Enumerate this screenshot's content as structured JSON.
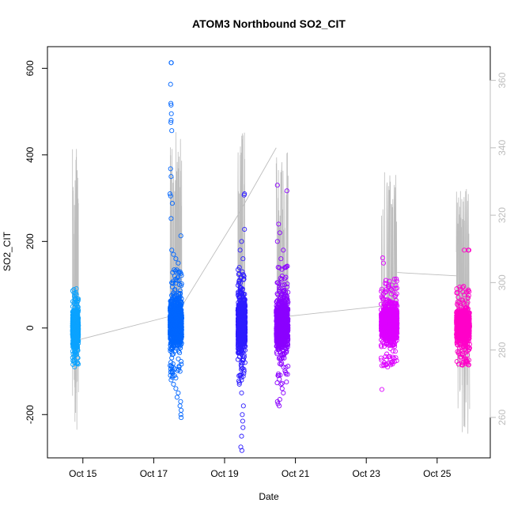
{
  "chart_data": {
    "type": "scatter",
    "title": "ATOM3 Northbound SO2_CIT",
    "xlabel": "Date",
    "ylabel": "SO2_CIT",
    "xlim": [
      "2017-10-14 00:00",
      "2017-10-26 12:00"
    ],
    "ylim": [
      -300,
      650
    ],
    "y2lim": [
      248,
      370
    ],
    "x_ticks": [
      "Oct 15",
      "Oct 17",
      "Oct 19",
      "Oct 21",
      "Oct 23",
      "Oct 25"
    ],
    "x_tick_dates": [
      "2017-10-15",
      "2017-10-17",
      "2017-10-19",
      "2017-10-21",
      "2017-10-23",
      "2017-10-25"
    ],
    "y_ticks": [
      -200,
      0,
      200,
      400,
      600
    ],
    "y2_ticks": [
      260,
      280,
      300,
      320,
      340,
      360
    ],
    "y2_color": "#bdbdbd",
    "grid": false,
    "legend": "none",
    "series": [
      {
        "color": "#0ba3ff",
        "x_range": [
          "2017-10-14 17:00",
          "2017-10-14 21:00"
        ],
        "center": 0,
        "core_halfwidth": 40,
        "outliers": [
          [
            0.1,
            -60
          ],
          [
            0.5,
            -55
          ],
          [
            0.9,
            -52
          ],
          [
            0.7,
            42
          ],
          [
            0.3,
            38
          ],
          [
            0.95,
            40
          ]
        ]
      },
      {
        "color": "#0066ff",
        "x_range": [
          "2017-10-17 11:00",
          "2017-10-17 19:00"
        ],
        "center": 10,
        "core_halfwidth": 55,
        "outliers": [
          [
            0.1,
            613
          ],
          [
            0.12,
            613
          ],
          [
            0.05,
            563
          ],
          [
            0.08,
            519
          ],
          [
            0.1,
            515
          ],
          [
            0.12,
            495
          ],
          [
            0.1,
            480
          ],
          [
            0.08,
            475
          ],
          [
            0.15,
            456
          ],
          [
            0.05,
            368
          ],
          [
            0.1,
            350
          ],
          [
            0.0,
            310
          ],
          [
            0.05,
            305
          ],
          [
            0.2,
            288
          ],
          [
            0.1,
            253
          ],
          [
            0.92,
            213
          ],
          [
            0.15,
            180
          ],
          [
            0.3,
            170
          ],
          [
            0.5,
            160
          ],
          [
            0.7,
            150
          ],
          [
            0.4,
            120
          ],
          [
            0.6,
            110
          ],
          [
            0.8,
            100
          ],
          [
            0.2,
            95
          ],
          [
            0.1,
            -120
          ],
          [
            0.3,
            -130
          ],
          [
            0.5,
            -140
          ],
          [
            0.7,
            -150
          ],
          [
            0.9,
            -170
          ],
          [
            0.95,
            -190
          ],
          [
            0.92,
            -200
          ],
          [
            0.95,
            -207
          ],
          [
            0.6,
            -160
          ],
          [
            0.4,
            -110
          ],
          [
            0.25,
            -100
          ],
          [
            0.85,
            -180
          ]
        ]
      },
      {
        "color": "#2d1cff",
        "x_range": [
          "2017-10-19 09:00",
          "2017-10-19 14:00"
        ],
        "center": 10,
        "core_halfwidth": 60,
        "outliers": [
          [
            0.9,
            310
          ],
          [
            0.85,
            307
          ],
          [
            0.9,
            228
          ],
          [
            0.5,
            200
          ],
          [
            0.3,
            180
          ],
          [
            0.7,
            160
          ],
          [
            0.2,
            140
          ],
          [
            0.6,
            130
          ],
          [
            0.8,
            120
          ],
          [
            0.4,
            115
          ],
          [
            0.3,
            -110
          ],
          [
            0.5,
            -150
          ],
          [
            0.6,
            -200
          ],
          [
            0.7,
            -230
          ],
          [
            0.5,
            -250
          ],
          [
            0.4,
            -275
          ],
          [
            0.55,
            -283
          ],
          [
            0.65,
            -215
          ],
          [
            0.75,
            -180
          ],
          [
            0.2,
            -130
          ],
          [
            0.85,
            -100
          ]
        ]
      },
      {
        "color": "#8b00ff",
        "x_range": [
          "2017-10-20 11:00",
          "2017-10-20 19:00"
        ],
        "center": 5,
        "core_halfwidth": 60,
        "outliers": [
          [
            0.1,
            330
          ],
          [
            0.9,
            317
          ],
          [
            0.2,
            240
          ],
          [
            0.3,
            220
          ],
          [
            0.1,
            200
          ],
          [
            0.6,
            180
          ],
          [
            0.4,
            160
          ],
          [
            0.8,
            140
          ],
          [
            0.5,
            120
          ],
          [
            0.7,
            100
          ],
          [
            0.2,
            -110
          ],
          [
            0.4,
            -130
          ],
          [
            0.6,
            -150
          ],
          [
            0.3,
            -165
          ],
          [
            0.1,
            -170
          ],
          [
            0.25,
            -180
          ],
          [
            0.15,
            -175
          ],
          [
            0.5,
            -140
          ]
        ]
      },
      {
        "color": "#dd00ff",
        "x_range": [
          "2017-10-23 10:00",
          "2017-10-23 21:00"
        ],
        "center": 10,
        "core_halfwidth": 45,
        "outliers": [
          [
            0.1,
            162
          ],
          [
            0.15,
            150
          ],
          [
            0.3,
            110
          ],
          [
            0.5,
            95
          ],
          [
            0.7,
            85
          ],
          [
            0.9,
            75
          ],
          [
            0.05,
            -142
          ],
          [
            0.2,
            -80
          ],
          [
            0.4,
            -90
          ],
          [
            0.6,
            -85
          ],
          [
            0.8,
            -70
          ],
          [
            0.35,
            -60
          ]
        ]
      },
      {
        "color": "#ff00c8",
        "x_range": [
          "2017-10-25 13:00",
          "2017-10-25 22:00"
        ],
        "center": 5,
        "core_halfwidth": 40,
        "outliers": [
          [
            0.6,
            180
          ],
          [
            0.95,
            180
          ],
          [
            0.9,
            180
          ],
          [
            0.1,
            60
          ],
          [
            0.3,
            -60
          ],
          [
            0.5,
            -80
          ],
          [
            0.4,
            -85
          ],
          [
            0.7,
            -75
          ],
          [
            0.2,
            -55
          ],
          [
            0.8,
            55
          ]
        ]
      }
    ],
    "altitude_line": {
      "axis": "right",
      "color": "#bdbdbd",
      "segments": [
        {
          "x": [
            "2017-10-14 17:00",
            "2017-10-14 21:00"
          ],
          "ymin": 255,
          "ymax": 340,
          "center": 285
        },
        {
          "x": [
            "2017-10-17 11:00",
            "2017-10-17 19:00"
          ],
          "ymin": 282,
          "ymax": 345,
          "center": 292
        },
        {
          "x": [
            "2017-10-19 09:00",
            "2017-10-19 14:00"
          ],
          "ymin": 280,
          "ymax": 346,
          "center": 294
        },
        {
          "x": [
            "2017-10-20 11:00",
            "2017-10-20 19:00"
          ],
          "ymin": 282,
          "ymax": 340,
          "center": 290
        },
        {
          "x": [
            "2017-10-23 10:00",
            "2017-10-23 21:00"
          ],
          "ymin": 285,
          "ymax": 333,
          "center": 293
        },
        {
          "x": [
            "2017-10-25 13:00",
            "2017-10-25 22:00"
          ],
          "ymin": 255,
          "ymax": 328,
          "center": 290
        }
      ],
      "connectors": [
        [
          [
            "2017-10-14 21:00",
            283
          ],
          [
            "2017-10-17 11:00",
            290
          ]
        ],
        [
          [
            "2017-10-17 19:00",
            293
          ],
          [
            "2017-10-19 09:00",
            320
          ],
          [
            "2017-10-20 11:00",
            340
          ]
        ],
        [
          [
            "2017-10-20 19:00",
            290
          ],
          [
            "2017-10-23 10:00",
            293
          ]
        ],
        [
          [
            "2017-10-23 21:00",
            303
          ],
          [
            "2017-10-25 13:00",
            302
          ]
        ]
      ]
    }
  }
}
